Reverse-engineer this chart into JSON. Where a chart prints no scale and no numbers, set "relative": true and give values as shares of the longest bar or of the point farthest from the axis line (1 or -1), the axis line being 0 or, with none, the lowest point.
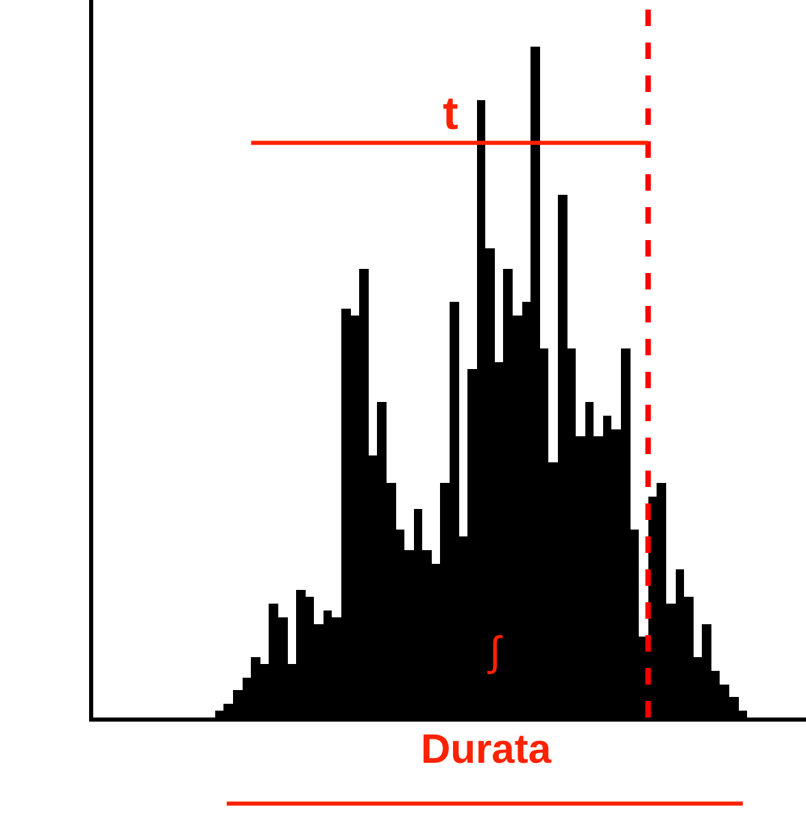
{
  "chart_data": {
    "type": "bar",
    "relative": true,
    "color": "#000000",
    "categories": [
      null,
      null,
      null,
      null,
      null,
      null,
      null,
      null,
      null,
      null,
      null,
      null,
      null,
      null,
      null,
      null,
      null,
      null,
      null,
      null,
      null,
      null,
      null,
      null,
      null,
      null,
      null,
      null,
      null,
      null,
      null,
      null,
      null,
      null,
      null,
      null,
      null,
      null,
      null,
      null,
      null,
      null,
      null,
      null,
      null,
      null,
      null,
      null,
      null,
      null,
      null,
      null,
      null,
      null,
      null,
      null,
      null,
      null,
      null
    ],
    "values": [
      0.01,
      0.02,
      0.04,
      0.06,
      0.09,
      0.08,
      0.17,
      0.15,
      0.08,
      0.19,
      0.18,
      0.14,
      0.16,
      0.15,
      0.61,
      0.6,
      0.67,
      0.39,
      0.47,
      0.35,
      0.28,
      0.25,
      0.31,
      0.25,
      0.23,
      0.35,
      0.62,
      0.27,
      0.52,
      0.92,
      0.7,
      0.53,
      0.67,
      0.6,
      0.62,
      1.0,
      0.55,
      0.38,
      0.78,
      0.55,
      0.42,
      0.47,
      0.42,
      0.45,
      0.43,
      0.55,
      0.28,
      0.12,
      0.33,
      0.35,
      0.17,
      0.22,
      0.18,
      0.09,
      0.14,
      0.07,
      0.05,
      0.03,
      0.01
    ],
    "annotations": [
      "t",
      "∫",
      "Durata"
    ],
    "tick_labels": false
  }
}
